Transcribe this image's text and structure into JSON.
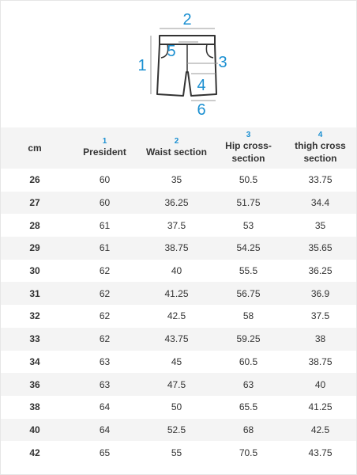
{
  "diagram": {
    "labels": [
      "2",
      "5",
      "3",
      "1",
      "4",
      "6"
    ]
  },
  "table": {
    "header": [
      {
        "label": "cm"
      },
      {
        "number": "1",
        "label": "President"
      },
      {
        "number": "2",
        "label": "Waist section"
      },
      {
        "number": "3",
        "label": "Hip cross-section"
      },
      {
        "number": "4",
        "label": "thigh cross section"
      }
    ],
    "rows": [
      [
        "26",
        "60",
        "35",
        "50.5",
        "33.75"
      ],
      [
        "27",
        "60",
        "36.25",
        "51.75",
        "34.4"
      ],
      [
        "28",
        "61",
        "37.5",
        "53",
        "35"
      ],
      [
        "29",
        "61",
        "38.75",
        "54.25",
        "35.65"
      ],
      [
        "30",
        "62",
        "40",
        "55.5",
        "36.25"
      ],
      [
        "31",
        "62",
        "41.25",
        "56.75",
        "36.9"
      ],
      [
        "32",
        "62",
        "42.5",
        "58",
        "37.5"
      ],
      [
        "33",
        "62",
        "43.75",
        "59.25",
        "38"
      ],
      [
        "34",
        "63",
        "45",
        "60.5",
        "38.75"
      ],
      [
        "36",
        "63",
        "47.5",
        "63",
        "40"
      ],
      [
        "38",
        "64",
        "50",
        "65.5",
        "41.25"
      ],
      [
        "40",
        "64",
        "52.5",
        "68",
        "42.5"
      ],
      [
        "42",
        "65",
        "55",
        "70.5",
        "43.75"
      ]
    ]
  }
}
